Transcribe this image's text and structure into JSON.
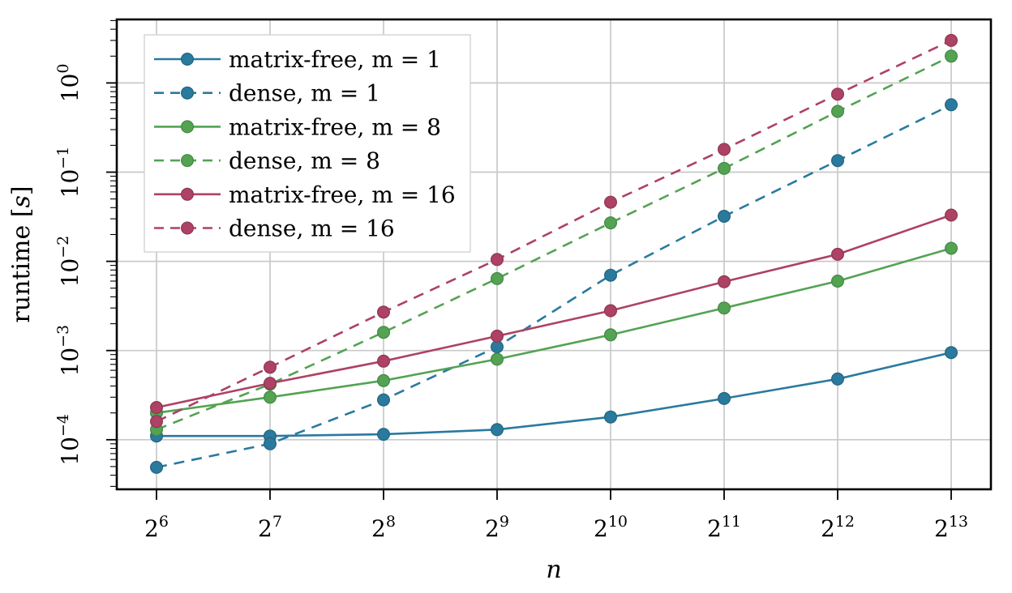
{
  "figure": {
    "background": "#ffffff"
  },
  "chart_data": {
    "type": "line",
    "title": "",
    "xlabel": "n",
    "ylabel": "runtime [s]",
    "ylabel_parts": {
      "prefix": "runtime [",
      "unit": "s",
      "suffix": "]"
    },
    "x_scale": "log2",
    "y_scale": "log10",
    "x_tick_base": "2",
    "x_tick_exponents": [
      6,
      7,
      8,
      9,
      10,
      11,
      12,
      13
    ],
    "x_tick_labels": [
      "2^6",
      "2^7",
      "2^8",
      "2^9",
      "2^10",
      "2^11",
      "2^12",
      "2^13"
    ],
    "x_values": [
      64,
      128,
      256,
      512,
      1024,
      2048,
      4096,
      8192
    ],
    "y_tick_base": "10",
    "y_tick_exponents": [
      0,
      -1,
      -2,
      -3,
      -4
    ],
    "y_tick_labels": [
      "10^0",
      "10^-1",
      "10^-2",
      "10^-3",
      "10^-4"
    ],
    "ylim": [
      2.8e-05,
      5.15
    ],
    "grid": true,
    "legend_position": "top-left",
    "colors": {
      "blue": "#2a7a9e",
      "green": "#53a353",
      "maroon": "#ad4264",
      "grid": "#c9c9c9",
      "axis": "#000000",
      "legend_border": "#d2d2d2",
      "legend_background": "#ffffff"
    },
    "series": [
      {
        "name": "matrix-free, m = 1",
        "color": "#2a7a9e",
        "style": "solid",
        "values": [
          0.00011,
          0.00011,
          0.000115,
          0.00013,
          0.00018,
          0.00029,
          0.00048,
          0.00095
        ]
      },
      {
        "name": "dense, m = 1",
        "color": "#2a7a9e",
        "style": "dashed",
        "values": [
          4.9e-05,
          9e-05,
          0.00028,
          0.0011,
          0.007,
          0.032,
          0.135,
          0.57
        ]
      },
      {
        "name": "matrix-free, m = 8",
        "color": "#53a353",
        "style": "solid",
        "values": [
          0.0002,
          0.0003,
          0.00046,
          0.0008,
          0.0015,
          0.003,
          0.006,
          0.014
        ]
      },
      {
        "name": "dense, m = 8",
        "color": "#53a353",
        "style": "dashed",
        "values": [
          0.00013,
          0.00042,
          0.0016,
          0.0064,
          0.027,
          0.11,
          0.48,
          2.0
        ]
      },
      {
        "name": "matrix-free, m = 16",
        "color": "#ad4264",
        "style": "solid",
        "values": [
          0.00023,
          0.00043,
          0.00076,
          0.00145,
          0.0028,
          0.0059,
          0.012,
          0.033
        ]
      },
      {
        "name": "dense, m = 16",
        "color": "#ad4264",
        "style": "dashed",
        "values": [
          0.00016,
          0.00065,
          0.0027,
          0.0105,
          0.046,
          0.18,
          0.75,
          3.0
        ]
      }
    ]
  }
}
